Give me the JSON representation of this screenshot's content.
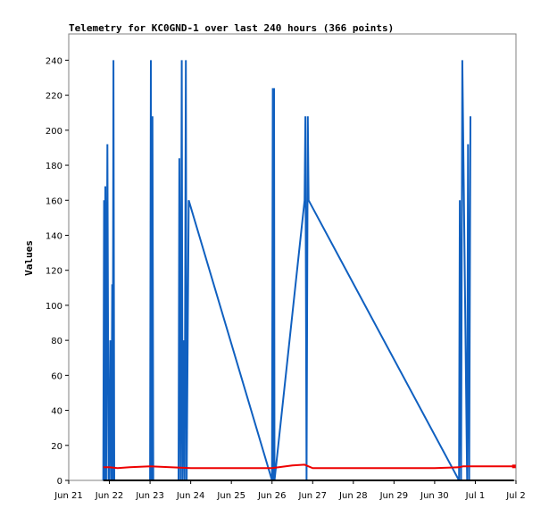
{
  "chart_data": {
    "type": "line",
    "title": "Telemetry for KC0GND-1 over last 240 hours (366 points)",
    "xlabel": "",
    "ylabel": "Values",
    "x_ticks": [
      "Jun 21",
      "Jun 22",
      "Jun 23",
      "Jun 24",
      "Jun 25",
      "Jun 26",
      "Jun 27",
      "Jun 28",
      "Jun 29",
      "Jun 30",
      "Jul 1",
      "Jul 2"
    ],
    "y_ticks": [
      "0",
      "20",
      "40",
      "60",
      "80",
      "100",
      "120",
      "140",
      "160",
      "180",
      "200",
      "220",
      "240"
    ],
    "xlim": [
      0,
      11
    ],
    "ylim": [
      0,
      255
    ],
    "grid": false,
    "legend": "none",
    "colors": {
      "series_blue": "#1060c0",
      "series_red": "#ee0000",
      "axis": "#000000",
      "frame": "#808080"
    },
    "series": [
      {
        "color": "#1060c0",
        "x": [
          0.85,
          0.87,
          0.88,
          0.9,
          0.92,
          0.95,
          0.98,
          1.0,
          1.02,
          1.05,
          1.07,
          1.08,
          1.1,
          1.12,
          1.15,
          1.18,
          2.0,
          2.02,
          2.04,
          2.06,
          2.08,
          2.7,
          2.72,
          2.75,
          2.78,
          2.8,
          2.82,
          2.85,
          2.88,
          2.9,
          2.95,
          5.0,
          5.02,
          5.03,
          5.05,
          5.06,
          5.8,
          5.82,
          5.85,
          5.88,
          5.9,
          9.6,
          9.62,
          9.65,
          9.68,
          9.8,
          9.82,
          9.85,
          9.88
        ],
        "y": [
          0,
          160,
          0,
          168,
          0,
          192,
          0,
          0,
          80,
          0,
          112,
          0,
          240,
          0,
          0,
          0,
          0,
          240,
          0,
          208,
          0,
          0,
          184,
          0,
          240,
          0,
          80,
          0,
          240,
          0,
          160,
          0,
          224,
          0,
          224,
          0,
          160,
          208,
          0,
          208,
          160,
          0,
          160,
          0,
          240,
          0,
          192,
          0,
          208
        ]
      },
      {
        "color": "#ee0000",
        "x": [
          0.85,
          1.0,
          1.2,
          1.5,
          2.0,
          3.0,
          4.0,
          4.9,
          5.0,
          5.5,
          5.8,
          6.0,
          7.0,
          8.0,
          9.0,
          9.6,
          9.7,
          10.0,
          10.5,
          10.95
        ],
        "y": [
          7.5,
          7.5,
          7.0,
          7.5,
          8.0,
          7.0,
          7.0,
          7.0,
          7.0,
          8.5,
          9.0,
          7.0,
          7.0,
          7.0,
          7.0,
          7.5,
          8.0,
          8.0,
          8.0,
          8.0
        ]
      },
      {
        "color": "#000000",
        "x": [
          0.85,
          10.95
        ],
        "y": [
          0,
          0
        ]
      }
    ]
  }
}
